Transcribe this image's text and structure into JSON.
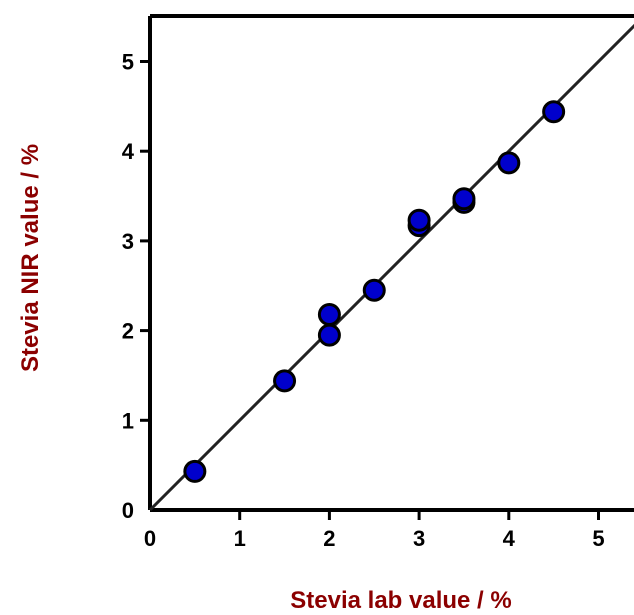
{
  "chart_data": {
    "type": "scatter",
    "title": "",
    "xlabel": "Stevia lab value / %",
    "ylabel": "Stevia NIR value / %",
    "xlim": [
      0,
      5.4
    ],
    "ylim": [
      0,
      5.5
    ],
    "xticks": [
      "0",
      "1",
      "2",
      "3",
      "4",
      "5"
    ],
    "yticks": [
      "0",
      "1",
      "2",
      "3",
      "4",
      "5"
    ],
    "grid": false,
    "legend": "none",
    "label_color": "#8b0000",
    "point_color": "#0000cc",
    "points": [
      {
        "x": 0.5,
        "y": 0.43
      },
      {
        "x": 1.5,
        "y": 1.44
      },
      {
        "x": 2.0,
        "y": 1.95
      },
      {
        "x": 2.0,
        "y": 2.18
      },
      {
        "x": 2.5,
        "y": 2.45
      },
      {
        "x": 3.0,
        "y": 3.17
      },
      {
        "x": 3.0,
        "y": 3.23
      },
      {
        "x": 3.5,
        "y": 3.43
      },
      {
        "x": 3.5,
        "y": 3.47
      },
      {
        "x": 4.0,
        "y": 3.87
      },
      {
        "x": 4.5,
        "y": 4.44
      }
    ],
    "fit_line": {
      "slope": 1.0,
      "intercept": 0.0
    }
  }
}
